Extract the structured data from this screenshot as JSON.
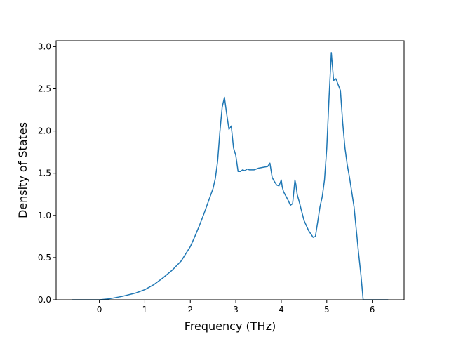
{
  "chart_data": {
    "type": "line",
    "title": "",
    "xlabel": "Frequency (THz)",
    "ylabel": "Density of States",
    "xlim": [
      -0.95,
      6.7
    ],
    "ylim": [
      0,
      3.07
    ],
    "xticks": [
      0,
      1,
      2,
      3,
      4,
      5,
      6
    ],
    "yticks": [
      0.0,
      0.5,
      1.0,
      1.5,
      2.0,
      2.5,
      3.0
    ],
    "xtick_labels": [
      "0",
      "1",
      "2",
      "3",
      "4",
      "5",
      "6"
    ],
    "ytick_labels": [
      "0.0",
      "0.5",
      "1.0",
      "1.5",
      "2.0",
      "2.5",
      "3.0"
    ],
    "grid": false,
    "line_color": "#1f77b4",
    "series": [
      {
        "x": [
          -0.6,
          0.0,
          0.2,
          0.5,
          0.8,
          1.0,
          1.2,
          1.4,
          1.6,
          1.8,
          2.0,
          2.1,
          2.2,
          2.3,
          2.4,
          2.5,
          2.55,
          2.6,
          2.65,
          2.7,
          2.75,
          2.8,
          2.85,
          2.9,
          2.95,
          3.0,
          3.05,
          3.1,
          3.15,
          3.2,
          3.25,
          3.3,
          3.4,
          3.5,
          3.6,
          3.7,
          3.75,
          3.8,
          3.85,
          3.9,
          3.95,
          4.0,
          4.02,
          4.05,
          4.1,
          4.15,
          4.2,
          4.25,
          4.3,
          4.32,
          4.35,
          4.4,
          4.5,
          4.6,
          4.7,
          4.75,
          4.8,
          4.85,
          4.9,
          4.95,
          5.0,
          5.05,
          5.1,
          5.15,
          5.2,
          5.25,
          5.3,
          5.35,
          5.4,
          5.45,
          5.5,
          5.6,
          5.7,
          5.75,
          5.8,
          6.0,
          6.35
        ],
        "y": [
          0.0,
          0.0,
          0.01,
          0.04,
          0.08,
          0.12,
          0.18,
          0.26,
          0.35,
          0.46,
          0.63,
          0.75,
          0.88,
          1.02,
          1.17,
          1.32,
          1.44,
          1.64,
          1.99,
          2.28,
          2.4,
          2.2,
          2.02,
          2.06,
          1.8,
          1.71,
          1.52,
          1.52,
          1.54,
          1.53,
          1.55,
          1.54,
          1.54,
          1.56,
          1.57,
          1.58,
          1.62,
          1.45,
          1.4,
          1.36,
          1.35,
          1.42,
          1.34,
          1.28,
          1.23,
          1.18,
          1.12,
          1.14,
          1.42,
          1.37,
          1.25,
          1.15,
          0.94,
          0.82,
          0.74,
          0.75,
          0.92,
          1.1,
          1.22,
          1.42,
          1.8,
          2.4,
          2.93,
          2.6,
          2.62,
          2.55,
          2.48,
          2.1,
          1.8,
          1.6,
          1.45,
          1.1,
          0.55,
          0.3,
          0.0,
          0.0,
          0.0
        ]
      }
    ]
  }
}
